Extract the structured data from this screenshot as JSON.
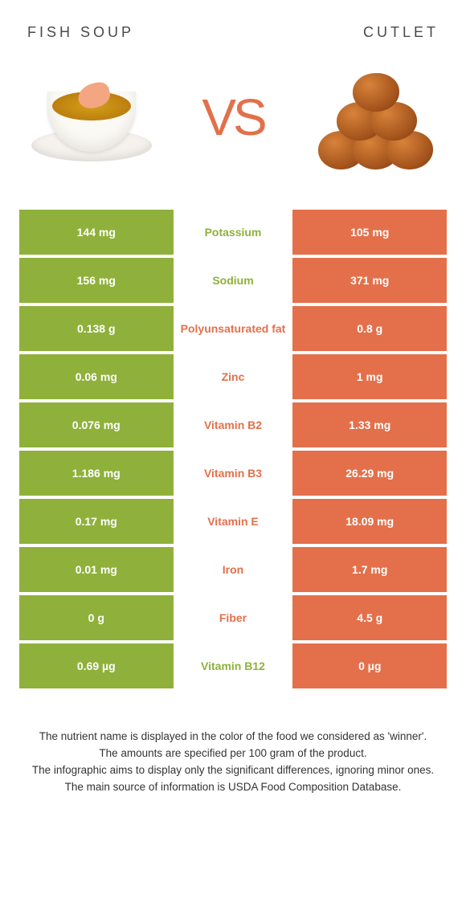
{
  "titles": {
    "left": "Fish soup",
    "right": "Cutlet"
  },
  "vs": "VS",
  "colors": {
    "left_bg": "#8fb13b",
    "right_bg": "#e3704b",
    "left_text": "#8fb13b",
    "right_text": "#e3704b",
    "row_gap": "#ffffff"
  },
  "rows": [
    {
      "left": "144 mg",
      "label": "Potassium",
      "right": "105 mg",
      "winner": "left"
    },
    {
      "left": "156 mg",
      "label": "Sodium",
      "right": "371 mg",
      "winner": "left"
    },
    {
      "left": "0.138 g",
      "label": "Polyunsaturated fat",
      "right": "0.8 g",
      "winner": "right"
    },
    {
      "left": "0.06 mg",
      "label": "Zinc",
      "right": "1 mg",
      "winner": "right"
    },
    {
      "left": "0.076 mg",
      "label": "Vitamin B2",
      "right": "1.33 mg",
      "winner": "right"
    },
    {
      "left": "1.186 mg",
      "label": "Vitamin B3",
      "right": "26.29 mg",
      "winner": "right"
    },
    {
      "left": "0.17 mg",
      "label": "Vitamin E",
      "right": "18.09 mg",
      "winner": "right"
    },
    {
      "left": "0.01 mg",
      "label": "Iron",
      "right": "1.7 mg",
      "winner": "right"
    },
    {
      "left": "0 g",
      "label": "Fiber",
      "right": "4.5 g",
      "winner": "right"
    },
    {
      "left": "0.69 µg",
      "label": "Vitamin B12",
      "right": "0 µg",
      "winner": "left"
    }
  ],
  "footnotes": [
    "The nutrient name is displayed in the color of the food we considered as 'winner'.",
    "The amounts are specified per 100 gram of the product.",
    "The infographic aims to display only the significant differences, ignoring minor ones.",
    "The main source of information is USDA Food Composition Database."
  ]
}
